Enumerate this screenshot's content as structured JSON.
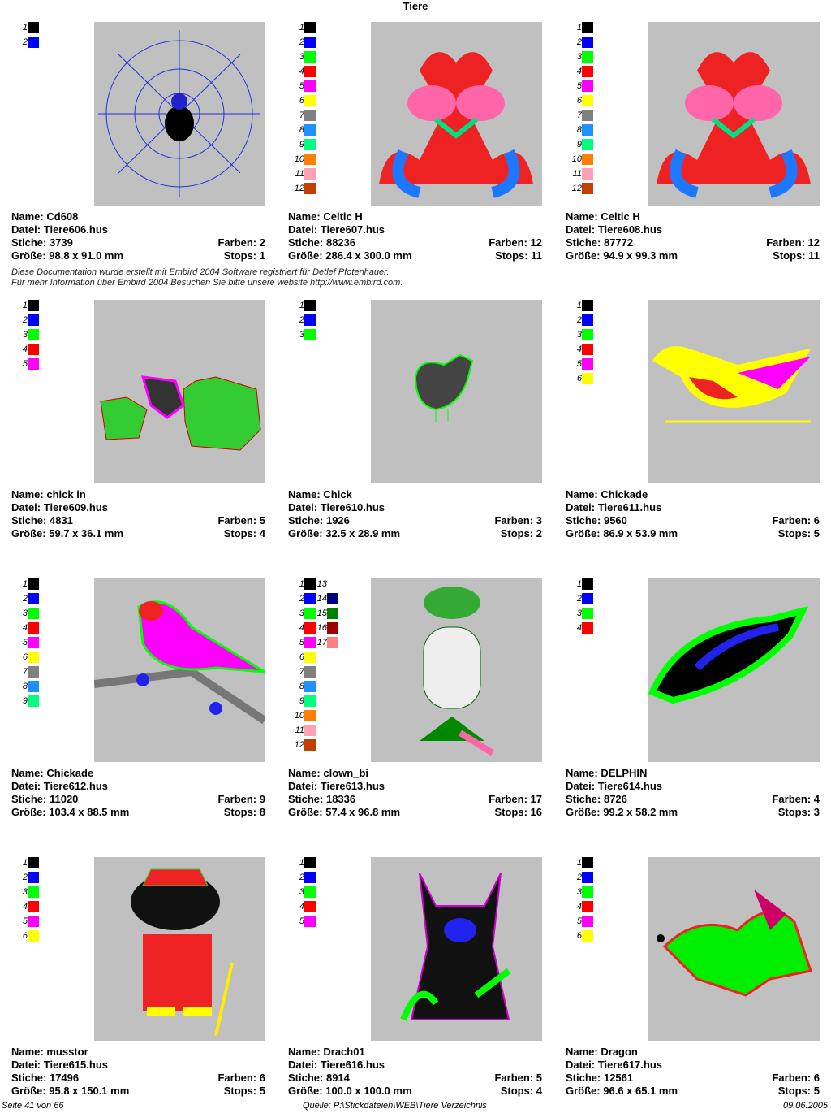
{
  "title": "Tiere",
  "thread_colors": {
    "1": "#000000",
    "2": "#0000ff",
    "3": "#00ff00",
    "4": "#ff0000",
    "5": "#ff00ff",
    "6": "#ffff00",
    "7": "#808080",
    "8": "#1e90ff",
    "9": "#00ff80",
    "10": "#ff8000",
    "11": "#ffa0b4",
    "12": "#c04000",
    "13": "#ffffff",
    "14": "#000080",
    "15": "#008000",
    "16": "#a00000",
    "17": "#ff8080"
  },
  "labels": {
    "name": "Name:",
    "file": "Datei:",
    "stitches": "Stiche:",
    "size": "Größe:",
    "colors": "Farben:",
    "stops": "Stops:"
  },
  "designs": [
    {
      "name": "Cd608",
      "file": "Tiere606.hus",
      "stitches": "3739",
      "size": "98.8 x 91.0 mm",
      "colors": "2",
      "stops": "1",
      "palette": [
        1,
        2
      ]
    },
    {
      "name": "Celtic H",
      "file": "Tiere607.hus",
      "stitches": "88236",
      "size": "286.4 x 300.0 mm",
      "colors": "12",
      "stops": "11",
      "palette": [
        1,
        2,
        3,
        4,
        5,
        6,
        7,
        8,
        9,
        10,
        11,
        12
      ]
    },
    {
      "name": "Celtic H",
      "file": "Tiere608.hus",
      "stitches": "87772",
      "size": "94.9 x 99.3 mm",
      "colors": "12",
      "stops": "11",
      "palette": [
        1,
        2,
        3,
        4,
        5,
        6,
        7,
        8,
        9,
        10,
        11,
        12
      ]
    },
    {
      "name": "chick in",
      "file": "Tiere609.hus",
      "stitches": "4831",
      "size": "59.7 x 36.1 mm",
      "colors": "5",
      "stops": "4",
      "palette": [
        1,
        2,
        3,
        4,
        5
      ]
    },
    {
      "name": "Chick",
      "file": "Tiere610.hus",
      "stitches": "1926",
      "size": "32.5 x 28.9 mm",
      "colors": "3",
      "stops": "2",
      "palette": [
        1,
        2,
        3
      ]
    },
    {
      "name": "Chickade",
      "file": "Tiere611.hus",
      "stitches": "9560",
      "size": "86.9 x 53.9 mm",
      "colors": "6",
      "stops": "5",
      "palette": [
        1,
        2,
        3,
        4,
        5,
        6
      ]
    },
    {
      "name": "Chickade",
      "file": "Tiere612.hus",
      "stitches": "11020",
      "size": "103.4 x 88.5 mm",
      "colors": "9",
      "stops": "8",
      "palette": [
        1,
        2,
        3,
        4,
        5,
        6,
        7,
        8,
        9
      ]
    },
    {
      "name": "clown_bi",
      "file": "Tiere613.hus",
      "stitches": "18336",
      "size": "57.4 x 96.8 mm",
      "colors": "17",
      "stops": "16",
      "palette": [
        1,
        2,
        3,
        4,
        5,
        6,
        7,
        8,
        9,
        10,
        11,
        12,
        13,
        14,
        15,
        16,
        17
      ]
    },
    {
      "name": "DELPHIN",
      "file": "Tiere614.hus",
      "stitches": "8726",
      "size": "99.2 x 58.2 mm",
      "colors": "4",
      "stops": "3",
      "palette": [
        1,
        2,
        3,
        4
      ]
    },
    {
      "name": "musstor",
      "file": "Tiere615.hus",
      "stitches": "17496",
      "size": "95.8 x 150.1 mm",
      "colors": "6",
      "stops": "5",
      "palette": [
        1,
        2,
        3,
        4,
        5,
        6
      ]
    },
    {
      "name": "Drach01",
      "file": "Tiere616.hus",
      "stitches": "8914",
      "size": "100.0 x 100.0 mm",
      "colors": "5",
      "stops": "4",
      "palette": [
        1,
        2,
        3,
        4,
        5
      ]
    },
    {
      "name": "Dragon",
      "file": "Tiere617.hus",
      "stitches": "12561",
      "size": "96.6 x 65.1 mm",
      "colors": "6",
      "stops": "5",
      "palette": [
        1,
        2,
        3,
        4,
        5,
        6
      ]
    }
  ],
  "note": {
    "line1": "Diese Documentation wurde erstellt mit Embird 2004 Software registriert für Detlef Pfotenhauer.",
    "line2": "Für mehr Information über Embird 2004 Besuchen Sie bitte unsere website http://www.embird.com."
  },
  "footer": {
    "page": "Seite 41 von 66",
    "source": "Quelle: P:\\Stickdateien\\WEB\\Tiere Verzeichnis",
    "date": "09.06.2005"
  }
}
